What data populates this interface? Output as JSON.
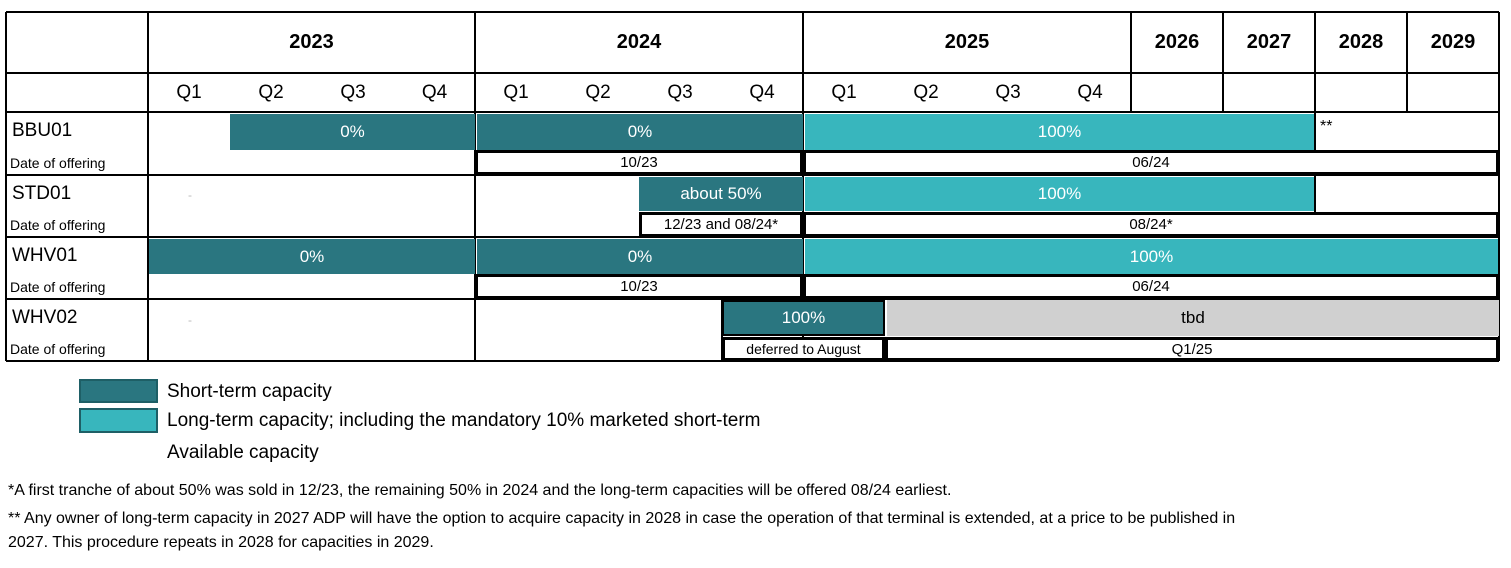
{
  "header": {
    "years": [
      "2023",
      "2024",
      "2025",
      "2026",
      "2027",
      "2028",
      "2029"
    ],
    "quarters": [
      "Q1",
      "Q2",
      "Q3",
      "Q4",
      "Q1",
      "Q2",
      "Q3",
      "Q4",
      "Q1",
      "Q2",
      "Q3",
      "Q4"
    ]
  },
  "rows": {
    "bbu01": {
      "label": "BBU01",
      "date_label": "Date of offering",
      "bar1": "0%",
      "bar2": "0%",
      "bar3": "100%",
      "note": "**",
      "date1": "10/23",
      "date2": "06/24"
    },
    "std01": {
      "label": "STD01",
      "date_label": "Date of offering",
      "dash": "-",
      "bar1": "about 50%",
      "bar2": "100%",
      "date1": "12/23 and 08/24*",
      "date2": "08/24*"
    },
    "whv01": {
      "label": "WHV01",
      "date_label": "Date of offering",
      "bar1": "0%",
      "bar2": "0%",
      "bar3": "100%",
      "date1": "10/23",
      "date2": "06/24"
    },
    "whv02": {
      "label": "WHV02",
      "date_label": "Date of offering",
      "dash": "-",
      "bar1": "100%",
      "bar2": "tbd",
      "date1": "deferred to August",
      "date2": "Q1/25"
    }
  },
  "legend": {
    "short_term": "Short-term capacity",
    "long_term": "Long-term capacity; including the mandatory 10% marketed short-term",
    "available": "Available capacity"
  },
  "colors": {
    "short_term": "#2a7680",
    "long_term": "#38b6bd",
    "tbd": "#d0d0d0"
  },
  "footnotes": {
    "note1": "*A first tranche of about 50% was sold in 12/23, the remaining 50% in 2024 and the long-term capacities will be offered 08/24 earliest.",
    "note2_line1": "** Any owner of long-term capacity in 2027 ADP will have the option to acquire capacity in 2028 in case the operation of that terminal is extended, at a price to be published in",
    "note2_line2": "2027. This procedure repeats in 2028 for capacities in 2029."
  }
}
